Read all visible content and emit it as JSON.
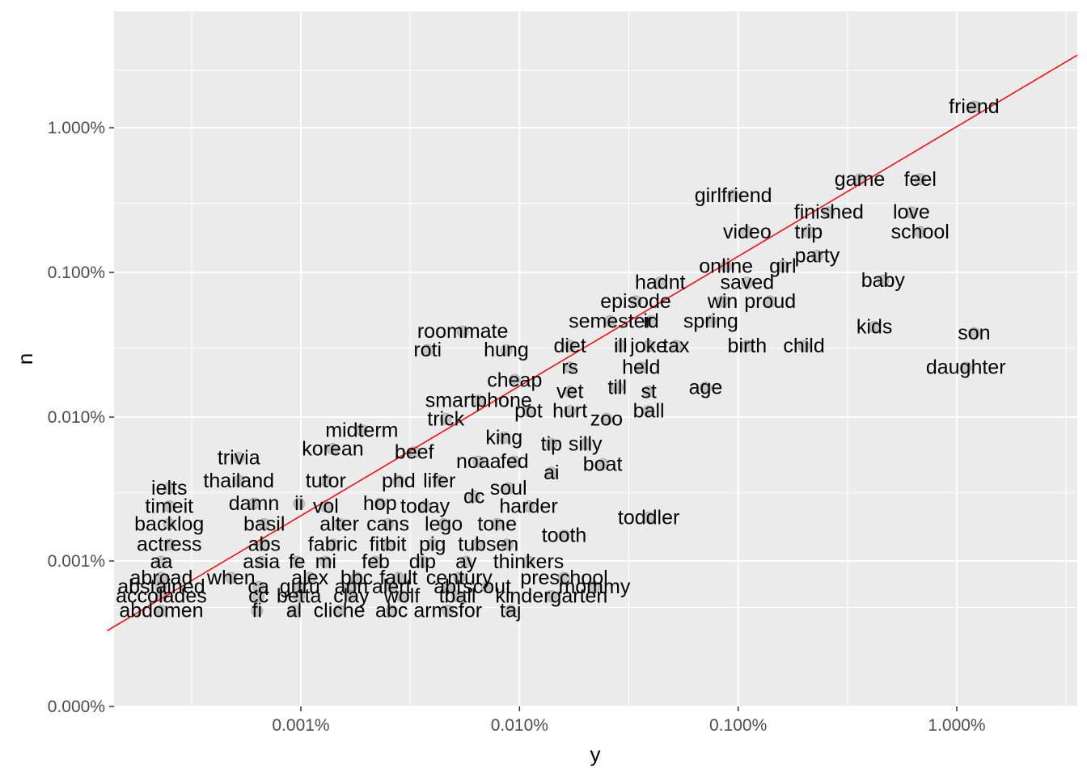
{
  "chart_data": {
    "type": "scatter",
    "title": "",
    "xlabel": "y",
    "ylabel": "n",
    "x_scale": "log10",
    "y_scale": "log10 (near-linear toward 0)",
    "x_ticks": [
      {
        "value": 1e-05,
        "label": "0.001%"
      },
      {
        "value": 0.0001,
        "label": "0.010%"
      },
      {
        "value": 0.001,
        "label": "0.100%"
      },
      {
        "value": 0.01,
        "label": "1.000%"
      }
    ],
    "y_ticks": [
      {
        "value": 0,
        "label": "0.000%"
      },
      {
        "value": 1e-05,
        "label": "0.001%"
      },
      {
        "value": 0.0001,
        "label": "0.010%"
      },
      {
        "value": 0.001,
        "label": "0.100%"
      },
      {
        "value": 0.01,
        "label": "1.000%"
      }
    ],
    "xlim": [
      1.4e-06,
      0.034
    ],
    "ylim": [
      0,
      0.042
    ],
    "reference_line": {
      "description": "y = x",
      "color": "#ff0000"
    },
    "points_style": {
      "color": "#000000",
      "alpha": 0.1
    },
    "colors": {
      "panel": "#ebebeb",
      "grid": "#ffffff",
      "points": "#000000",
      "line": "#ff0000"
    },
    "grid": true,
    "legend": "none",
    "labeled_points": [
      {
        "word": "friend",
        "x": 0.012,
        "y": 0.014
      },
      {
        "word": "game",
        "x": 0.0036,
        "y": 0.0044
      },
      {
        "word": "feel",
        "x": 0.0068,
        "y": 0.0044
      },
      {
        "word": "girlfriend",
        "x": 0.00095,
        "y": 0.0034
      },
      {
        "word": "finished",
        "x": 0.0026,
        "y": 0.0026
      },
      {
        "word": "love",
        "x": 0.0062,
        "y": 0.0026
      },
      {
        "word": "video",
        "x": 0.0011,
        "y": 0.0019
      },
      {
        "word": "trip",
        "x": 0.0021,
        "y": 0.0019
      },
      {
        "word": "school",
        "x": 0.0068,
        "y": 0.0019
      },
      {
        "word": "party",
        "x": 0.0023,
        "y": 0.0013
      },
      {
        "word": "online",
        "x": 0.00088,
        "y": 0.0011
      },
      {
        "word": "girl",
        "x": 0.0016,
        "y": 0.0011
      },
      {
        "word": "baby",
        "x": 0.0046,
        "y": 0.00088
      },
      {
        "word": "hadnt",
        "x": 0.00044,
        "y": 0.00085
      },
      {
        "word": "saved",
        "x": 0.0011,
        "y": 0.00085
      },
      {
        "word": "episode",
        "x": 0.00034,
        "y": 0.00063
      },
      {
        "word": "win",
        "x": 0.00085,
        "y": 0.00063
      },
      {
        "word": "proud",
        "x": 0.0014,
        "y": 0.00063
      },
      {
        "word": "semester",
        "x": 0.00026,
        "y": 0.00046
      },
      {
        "word": "id",
        "x": 0.0004,
        "y": 0.00046
      },
      {
        "word": "spring",
        "x": 0.00075,
        "y": 0.00046
      },
      {
        "word": "kids",
        "x": 0.0042,
        "y": 0.00042
      },
      {
        "word": "son",
        "x": 0.012,
        "y": 0.00038
      },
      {
        "word": "roommate",
        "x": 5.5e-05,
        "y": 0.00039
      },
      {
        "word": "diet",
        "x": 0.00017,
        "y": 0.00031
      },
      {
        "word": "ill",
        "x": 0.00029,
        "y": 0.00031
      },
      {
        "word": "joke",
        "x": 0.00039,
        "y": 0.00031
      },
      {
        "word": "tax",
        "x": 0.00052,
        "y": 0.00031
      },
      {
        "word": "birth",
        "x": 0.0011,
        "y": 0.00031
      },
      {
        "word": "child",
        "x": 0.002,
        "y": 0.00031
      },
      {
        "word": "roti",
        "x": 3.8e-05,
        "y": 0.00029
      },
      {
        "word": "hung",
        "x": 8.7e-05,
        "y": 0.00029
      },
      {
        "word": "rs",
        "x": 0.00017,
        "y": 0.00022
      },
      {
        "word": "held",
        "x": 0.00036,
        "y": 0.00022
      },
      {
        "word": "daughter",
        "x": 0.011,
        "y": 0.00022
      },
      {
        "word": "cheap",
        "x": 9.5e-05,
        "y": 0.00018
      },
      {
        "word": "till",
        "x": 0.00028,
        "y": 0.00016
      },
      {
        "word": "age",
        "x": 0.00071,
        "y": 0.00016
      },
      {
        "word": "vet",
        "x": 0.00017,
        "y": 0.00015
      },
      {
        "word": "st",
        "x": 0.00039,
        "y": 0.00015
      },
      {
        "word": "smartphone",
        "x": 6.5e-05,
        "y": 0.00013
      },
      {
        "word": "ball",
        "x": 0.00039,
        "y": 0.00011
      },
      {
        "word": "pot",
        "x": 0.00011,
        "y": 0.00011
      },
      {
        "word": "hurt",
        "x": 0.00017,
        "y": 0.00011
      },
      {
        "word": "trick",
        "x": 4.6e-05,
        "y": 9.7e-05
      },
      {
        "word": "zoo",
        "x": 0.00025,
        "y": 9.7e-05
      },
      {
        "word": "midterm",
        "x": 1.9e-05,
        "y": 8.1e-05
      },
      {
        "word": "king",
        "x": 8.5e-05,
        "y": 7.2e-05
      },
      {
        "word": "tip",
        "x": 0.00014,
        "y": 6.5e-05
      },
      {
        "word": "silly",
        "x": 0.0002,
        "y": 6.5e-05
      },
      {
        "word": "korean",
        "x": 1.4e-05,
        "y": 6e-05
      },
      {
        "word": "beef",
        "x": 3.3e-05,
        "y": 5.7e-05
      },
      {
        "word": "trivia",
        "x": 5.2e-06,
        "y": 5.2e-05
      },
      {
        "word": "noaa",
        "x": 6.5e-05,
        "y": 4.9e-05
      },
      {
        "word": "fed",
        "x": 9.5e-05,
        "y": 4.9e-05
      },
      {
        "word": "boat",
        "x": 0.00024,
        "y": 4.7e-05
      },
      {
        "word": "ai",
        "x": 0.00014,
        "y": 4.1e-05
      },
      {
        "word": "thailand",
        "x": 5.2e-06,
        "y": 3.6e-05
      },
      {
        "word": "tutor",
        "x": 1.3e-05,
        "y": 3.6e-05
      },
      {
        "word": "phd",
        "x": 2.8e-05,
        "y": 3.6e-05
      },
      {
        "word": "lifer",
        "x": 4.3e-05,
        "y": 3.6e-05
      },
      {
        "word": "ielts",
        "x": 2.5e-06,
        "y": 3.2e-05
      },
      {
        "word": "soul",
        "x": 8.9e-05,
        "y": 3.2e-05
      },
      {
        "word": "dc",
        "x": 6.2e-05,
        "y": 2.8e-05
      },
      {
        "word": "timeit",
        "x": 2.5e-06,
        "y": 2.4e-05
      },
      {
        "word": "damn",
        "x": 6.1e-06,
        "y": 2.5e-05
      },
      {
        "word": "ii",
        "x": 9.8e-06,
        "y": 2.5e-05
      },
      {
        "word": "vol",
        "x": 1.3e-05,
        "y": 2.4e-05
      },
      {
        "word": "hop",
        "x": 2.3e-05,
        "y": 2.5e-05
      },
      {
        "word": "today",
        "x": 3.7e-05,
        "y": 2.4e-05
      },
      {
        "word": "harder",
        "x": 0.00011,
        "y": 2.4e-05
      },
      {
        "word": "toddler",
        "x": 0.00039,
        "y": 2e-05
      },
      {
        "word": "backlog",
        "x": 2.5e-06,
        "y": 1.8e-05
      },
      {
        "word": "basil",
        "x": 6.8e-06,
        "y": 1.8e-05
      },
      {
        "word": "alter",
        "x": 1.5e-05,
        "y": 1.8e-05
      },
      {
        "word": "cans",
        "x": 2.5e-05,
        "y": 1.8e-05
      },
      {
        "word": "lego",
        "x": 4.5e-05,
        "y": 1.8e-05
      },
      {
        "word": "tone",
        "x": 7.9e-05,
        "y": 1.8e-05
      },
      {
        "word": "tooth",
        "x": 0.00016,
        "y": 1.5e-05
      },
      {
        "word": "actress",
        "x": 2.5e-06,
        "y": 1.3e-05
      },
      {
        "word": "abs",
        "x": 6.8e-06,
        "y": 1.3e-05
      },
      {
        "word": "fabric",
        "x": 1.4e-05,
        "y": 1.3e-05
      },
      {
        "word": "fitbit",
        "x": 2.5e-05,
        "y": 1.3e-05
      },
      {
        "word": "pig",
        "x": 4e-05,
        "y": 1.3e-05
      },
      {
        "word": "tubs",
        "x": 6.4e-05,
        "y": 1.3e-05
      },
      {
        "word": "en",
        "x": 8.8e-05,
        "y": 1.3e-05
      },
      {
        "word": "aa",
        "x": 2.3e-06,
        "y": 9.8e-06
      },
      {
        "word": "asia",
        "x": 6.6e-06,
        "y": 9.8e-06
      },
      {
        "word": "fe",
        "x": 9.6e-06,
        "y": 9.8e-06
      },
      {
        "word": "mi",
        "x": 1.3e-05,
        "y": 9.8e-06
      },
      {
        "word": "feb",
        "x": 2.2e-05,
        "y": 9.8e-06
      },
      {
        "word": "dip",
        "x": 3.6e-05,
        "y": 9.8e-06
      },
      {
        "word": "ay",
        "x": 5.7e-05,
        "y": 9.8e-06
      },
      {
        "word": "thinkers",
        "x": 0.00011,
        "y": 9.8e-06
      },
      {
        "word": "abroad",
        "x": 2.3e-06,
        "y": 6.8e-06
      },
      {
        "word": "when",
        "x": 4.8e-06,
        "y": 6.8e-06
      },
      {
        "word": "alex",
        "x": 1.1e-05,
        "y": 6.8e-06
      },
      {
        "word": "bbc",
        "x": 1.8e-05,
        "y": 6.8e-06
      },
      {
        "word": "fault",
        "x": 2.8e-05,
        "y": 6.8e-06
      },
      {
        "word": "century",
        "x": 5.3e-05,
        "y": 6.8e-06
      },
      {
        "word": "preschool",
        "x": 0.00016,
        "y": 6.8e-06
      },
      {
        "word": "abstained",
        "x": 2.3e-06,
        "y": 5.4e-06
      },
      {
        "word": "ca",
        "x": 6.4e-06,
        "y": 5.4e-06
      },
      {
        "word": "guru",
        "x": 9.9e-06,
        "y": 5.4e-06
      },
      {
        "word": "ann",
        "x": 1.7e-05,
        "y": 5.4e-06
      },
      {
        "word": "alert",
        "x": 2.6e-05,
        "y": 5.4e-06
      },
      {
        "word": "abt",
        "x": 4.7e-05,
        "y": 5.4e-06
      },
      {
        "word": "scout",
        "x": 7.1e-05,
        "y": 5.4e-06
      },
      {
        "word": "mommy",
        "x": 0.00022,
        "y": 5.4e-06
      },
      {
        "word": "accolades",
        "x": 2.3e-06,
        "y": 4.2e-06
      },
      {
        "word": "cc",
        "x": 6.4e-06,
        "y": 4.2e-06
      },
      {
        "word": "betta",
        "x": 9.8e-06,
        "y": 4.2e-06
      },
      {
        "word": "clay",
        "x": 1.7e-05,
        "y": 4.2e-06
      },
      {
        "word": "wolf",
        "x": 2.9e-05,
        "y": 4.2e-06
      },
      {
        "word": "tball",
        "x": 5.2e-05,
        "y": 4.2e-06
      },
      {
        "word": "kindergarten",
        "x": 0.00014,
        "y": 4.2e-06
      },
      {
        "word": "abdomen",
        "x": 2.3e-06,
        "y": 2.7e-06
      },
      {
        "word": "fi",
        "x": 6.3e-06,
        "y": 2.7e-06
      },
      {
        "word": "al",
        "x": 9.3e-06,
        "y": 2.7e-06
      },
      {
        "word": "cliche",
        "x": 1.5e-05,
        "y": 2.7e-06
      },
      {
        "word": "abc",
        "x": 2.6e-05,
        "y": 2.7e-06
      },
      {
        "word": "armsfor",
        "x": 4.7e-05,
        "y": 2.7e-06
      },
      {
        "word": "taj",
        "x": 9.1e-05,
        "y": 2.7e-06
      }
    ]
  }
}
